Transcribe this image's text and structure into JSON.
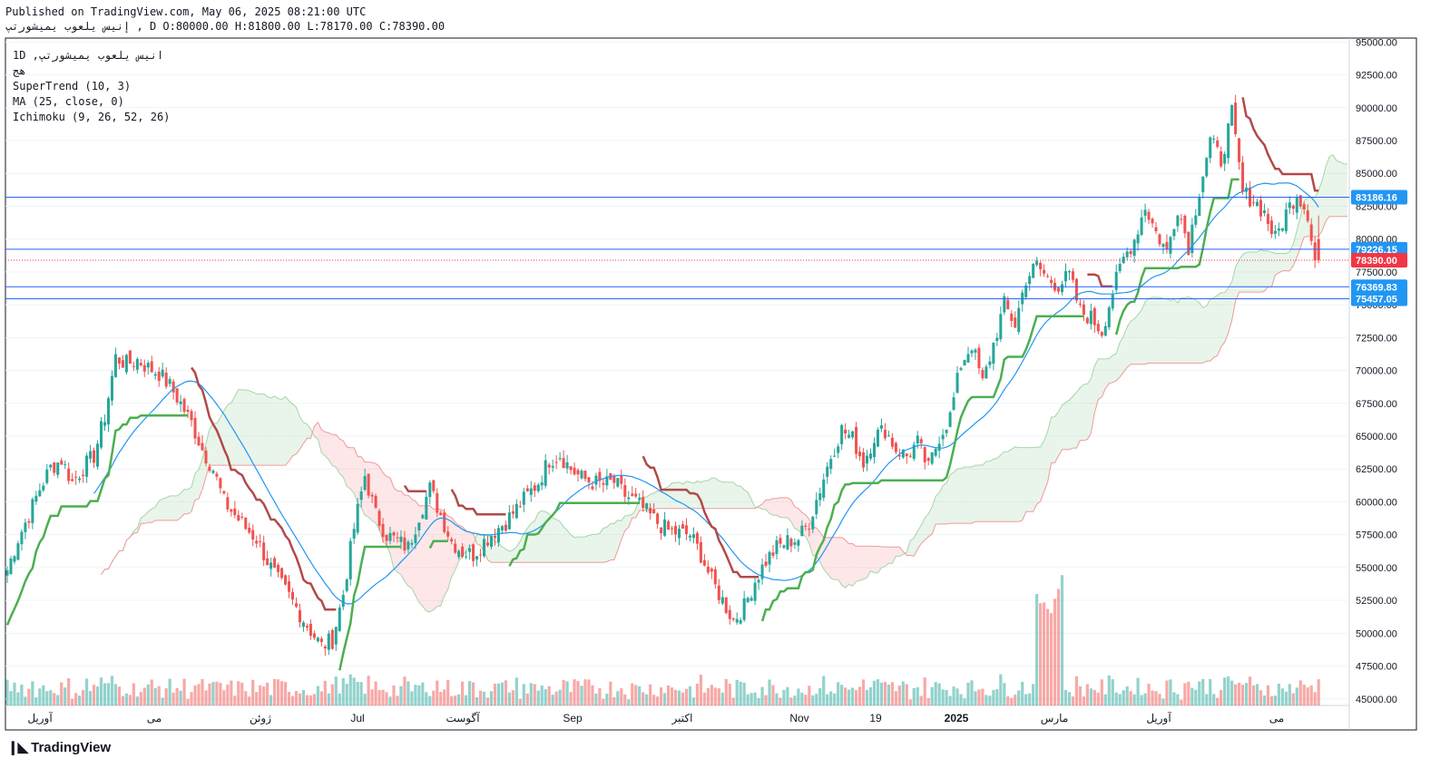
{
  "header": {
    "published": "Published on TradingView.com, May 06, 2025 08:21:00 UTC",
    "ohlc": "إنيس يلعوب يميشورتپ , D O:80000.00 H:81800.00 L:78170.00 C:78390.00"
  },
  "legend": [
    "1D ,انيس يلعوب يميشورتپ",
    "هج",
    "SuperTrend (10, 3)",
    "MA (25, close, 0)",
    "Ichimoku (9, 26, 52, 26)"
  ],
  "brand": "TradingView",
  "colors": {
    "up": "#26a69a",
    "down": "#ef5350",
    "supertrend_up": "#4caf50",
    "supertrend_down": "#b24a4a",
    "ma": "#2196f3",
    "hline": "#2962ff",
    "last_price": "#f23645"
  },
  "chart_data": {
    "type": "candlestick",
    "interval": "1D",
    "price_axis": {
      "ticks": [
        "95000.00",
        "92500.00",
        "90000.00",
        "87500.00",
        "85000.00",
        "82500.00",
        "80000.00",
        "77500.00",
        "75000.00",
        "72500.00",
        "70000.00",
        "67500.00",
        "65000.00",
        "62500.00",
        "60000.00",
        "57500.00",
        "55000.00",
        "52500.00",
        "50000.00",
        "47500.00",
        "45000.00"
      ],
      "range": [
        44500,
        95300
      ]
    },
    "time_axis": [
      "آوریل",
      "می",
      "ژوئن",
      "Jul",
      "آگوست",
      "Sep",
      "اکتبر",
      "Nov",
      "19",
      "2025",
      "مارس",
      "آوریل",
      "می"
    ],
    "horizontal_lines": [
      83186.16,
      79226.15,
      76369.83,
      75457.05
    ],
    "price_labels": [
      {
        "text": "83186.16",
        "value": 83186.16,
        "color": "#2196f3"
      },
      {
        "text": "79226.15",
        "value": 79226.15,
        "color": "#2196f3"
      },
      {
        "text": "78390.00",
        "value": 78390.0,
        "color": "#f23645"
      },
      {
        "text": "76369.83",
        "value": 76369.83,
        "color": "#2196f3"
      },
      {
        "text": "75457.05",
        "value": 75457.05,
        "color": "#2196f3"
      }
    ],
    "last_price": 78390.0,
    "ohlc": {
      "open": 80000.0,
      "high": 81800.0,
      "low": 78170.0,
      "close": 78390.0
    },
    "price_path": [
      [
        0,
        54800
      ],
      [
        3,
        57200
      ],
      [
        6,
        59000
      ],
      [
        9,
        61000
      ],
      [
        12,
        62600
      ],
      [
        15,
        63200
      ],
      [
        18,
        61500
      ],
      [
        21,
        62600
      ],
      [
        24,
        63500
      ],
      [
        27,
        66500
      ],
      [
        30,
        71000
      ],
      [
        33,
        70500
      ],
      [
        36,
        70800
      ],
      [
        39,
        70200
      ],
      [
        42,
        69800
      ],
      [
        45,
        68800
      ],
      [
        48,
        67500
      ],
      [
        51,
        66000
      ],
      [
        54,
        64000
      ],
      [
        57,
        62500
      ],
      [
        60,
        60000
      ],
      [
        63,
        59000
      ],
      [
        66,
        58000
      ],
      [
        69,
        57200
      ],
      [
        72,
        55500
      ],
      [
        75,
        54000
      ],
      [
        78,
        52800
      ],
      [
        81,
        51500
      ],
      [
        84,
        50200
      ],
      [
        87,
        49000
      ],
      [
        90,
        49500
      ],
      [
        93,
        53000
      ],
      [
        96,
        58000
      ],
      [
        99,
        62000
      ],
      [
        102,
        59000
      ],
      [
        105,
        57500
      ],
      [
        108,
        57000
      ],
      [
        111,
        56500
      ],
      [
        114,
        59000
      ],
      [
        117,
        61000
      ],
      [
        120,
        59000
      ],
      [
        123,
        57000
      ],
      [
        126,
        56200
      ],
      [
        129,
        56000
      ],
      [
        132,
        57000
      ],
      [
        135,
        57800
      ],
      [
        138,
        58500
      ],
      [
        141,
        59500
      ],
      [
        144,
        60500
      ],
      [
        147,
        61500
      ],
      [
        150,
        63200
      ],
      [
        153,
        63600
      ],
      [
        156,
        62500
      ],
      [
        159,
        61800
      ],
      [
        162,
        61500
      ],
      [
        165,
        61300
      ],
      [
        168,
        61500
      ],
      [
        171,
        60500
      ],
      [
        174,
        60000
      ],
      [
        177,
        59200
      ],
      [
        180,
        58400
      ],
      [
        183,
        57800
      ],
      [
        186,
        57600
      ],
      [
        189,
        57500
      ],
      [
        192,
        56000
      ],
      [
        195,
        54000
      ],
      [
        198,
        52500
      ],
      [
        201,
        51000
      ],
      [
        204,
        52000
      ],
      [
        207,
        54000
      ],
      [
        210,
        55500
      ],
      [
        213,
        56500
      ],
      [
        216,
        57000
      ],
      [
        219,
        57200
      ],
      [
        222,
        58500
      ],
      [
        225,
        61000
      ],
      [
        228,
        63500
      ],
      [
        231,
        65500
      ],
      [
        234,
        64800
      ],
      [
        237,
        63000
      ],
      [
        240,
        65000
      ],
      [
        243,
        65500
      ],
      [
        246,
        64000
      ],
      [
        249,
        63500
      ],
      [
        252,
        64500
      ],
      [
        255,
        62500
      ],
      [
        258,
        65000
      ],
      [
        261,
        66500
      ],
      [
        264,
        70500
      ],
      [
        267,
        72000
      ],
      [
        270,
        69000
      ],
      [
        273,
        72000
      ],
      [
        276,
        75000
      ],
      [
        279,
        73500
      ],
      [
        282,
        77000
      ],
      [
        285,
        78000
      ],
      [
        288,
        77000
      ],
      [
        291,
        76500
      ],
      [
        294,
        77200
      ],
      [
        297,
        74500
      ],
      [
        300,
        74000
      ],
      [
        303,
        73000
      ],
      [
        306,
        76000
      ],
      [
        309,
        78500
      ],
      [
        312,
        80000
      ],
      [
        315,
        82500
      ],
      [
        318,
        80500
      ],
      [
        321,
        79000
      ],
      [
        324,
        82500
      ],
      [
        327,
        79500
      ],
      [
        330,
        83800
      ],
      [
        333,
        87500
      ],
      [
        336,
        86000
      ],
      [
        339,
        89500
      ],
      [
        342,
        83500
      ],
      [
        345,
        83000
      ],
      [
        348,
        82000
      ],
      [
        351,
        80000
      ],
      [
        354,
        82000
      ],
      [
        357,
        83500
      ],
      [
        360,
        82000
      ],
      [
        362,
        78390
      ]
    ],
    "ma_length": 25,
    "supertrend": {
      "period": 10,
      "multiplier": 3
    },
    "ichimoku": {
      "conversion": 9,
      "base": 26,
      "lagging_span": 52,
      "displacement": 26
    }
  }
}
